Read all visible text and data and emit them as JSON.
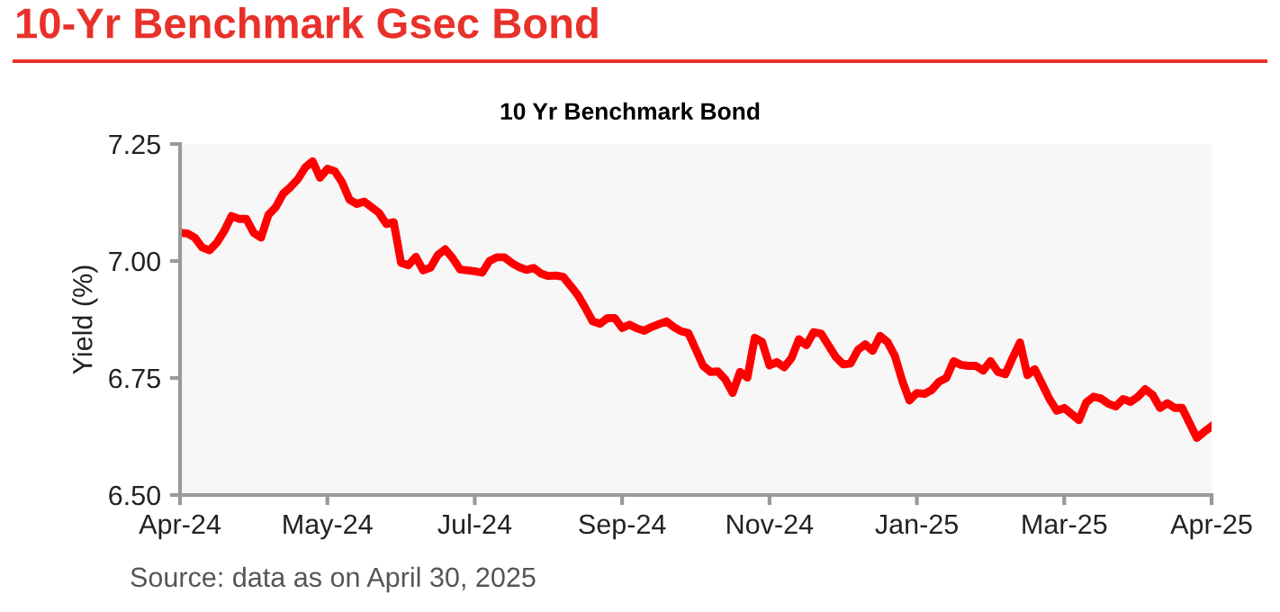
{
  "chart_data": {
    "type": "line",
    "title": "10-Yr Benchmark Gsec Bond",
    "subtitle": "10 Yr Benchmark Bond",
    "ylabel": "Yield (%)",
    "annotations": [
      "Source: data as on April 30, 2025"
    ],
    "categories": [
      "Apr-24",
      null,
      null,
      null,
      null,
      null,
      null,
      null,
      null,
      null,
      null,
      null,
      null,
      null,
      null,
      null,
      null,
      null,
      null,
      null,
      "May-24",
      null,
      null,
      null,
      null,
      null,
      null,
      null,
      null,
      null,
      null,
      null,
      null,
      null,
      null,
      null,
      null,
      null,
      null,
      null,
      "Jul-24",
      null,
      null,
      null,
      null,
      null,
      null,
      null,
      null,
      null,
      null,
      null,
      null,
      null,
      null,
      null,
      null,
      null,
      null,
      null,
      "Sep-24",
      null,
      null,
      null,
      null,
      null,
      null,
      null,
      null,
      null,
      null,
      null,
      null,
      null,
      null,
      null,
      null,
      null,
      null,
      null,
      "Nov-24",
      null,
      null,
      null,
      null,
      null,
      null,
      null,
      null,
      null,
      null,
      null,
      null,
      null,
      null,
      null,
      null,
      null,
      null,
      null,
      "Jan-25",
      null,
      null,
      null,
      null,
      null,
      null,
      null,
      null,
      null,
      null,
      null,
      null,
      null,
      null,
      null,
      null,
      null,
      null,
      null,
      "Mar-25",
      null,
      null,
      null,
      null,
      null,
      null,
      null,
      null,
      null,
      null,
      null,
      null,
      null,
      null,
      null,
      null,
      null,
      null,
      null,
      "Apr-25"
    ],
    "series": [
      {
        "color": "#ff0000",
        "values": [
          7.06,
          7.059,
          7.05,
          7.029,
          7.023,
          7.039,
          7.064,
          7.096,
          7.09,
          7.09,
          7.06,
          7.05,
          7.099,
          7.115,
          7.144,
          7.158,
          7.175,
          7.2,
          7.213,
          7.178,
          7.197,
          7.192,
          7.168,
          7.131,
          7.122,
          7.127,
          7.115,
          7.103,
          7.079,
          7.083,
          6.996,
          6.991,
          7.009,
          6.98,
          6.986,
          7.013,
          7.025,
          7.006,
          6.982,
          6.98,
          6.978,
          6.975,
          7.0,
          7.008,
          7.008,
          6.996,
          6.987,
          6.981,
          6.985,
          6.973,
          6.968,
          6.969,
          6.966,
          6.947,
          6.927,
          6.9,
          6.871,
          6.866,
          6.878,
          6.878,
          6.857,
          6.864,
          6.856,
          6.851,
          6.859,
          6.865,
          6.871,
          6.859,
          6.85,
          6.846,
          6.811,
          6.776,
          6.763,
          6.764,
          6.747,
          6.718,
          6.763,
          6.751,
          6.836,
          6.827,
          6.777,
          6.784,
          6.773,
          6.793,
          6.833,
          6.82,
          6.848,
          6.845,
          6.82,
          6.795,
          6.779,
          6.781,
          6.81,
          6.822,
          6.808,
          6.84,
          6.827,
          6.798,
          6.745,
          6.702,
          6.718,
          6.716,
          6.724,
          6.742,
          6.75,
          6.786,
          6.778,
          6.776,
          6.776,
          6.766,
          6.786,
          6.763,
          6.758,
          6.793,
          6.826,
          6.756,
          6.769,
          6.737,
          6.705,
          6.68,
          6.686,
          6.673,
          6.66,
          6.698,
          6.71,
          6.706,
          6.695,
          6.689,
          6.705,
          6.699,
          6.71,
          6.726,
          6.714,
          6.686,
          6.696,
          6.686,
          6.686,
          6.654,
          6.622,
          6.635,
          6.647
        ]
      }
    ],
    "ylim": [
      6.5,
      7.25
    ],
    "yticks": [
      {
        "value": 6.5,
        "label": "6.50"
      },
      {
        "value": 6.75,
        "label": "6.75"
      },
      {
        "value": 7.0,
        "label": "7.00"
      },
      {
        "value": 7.25,
        "label": "7.25"
      }
    ],
    "grid": false,
    "legend": false,
    "marker": "none",
    "line_style": "solid"
  }
}
